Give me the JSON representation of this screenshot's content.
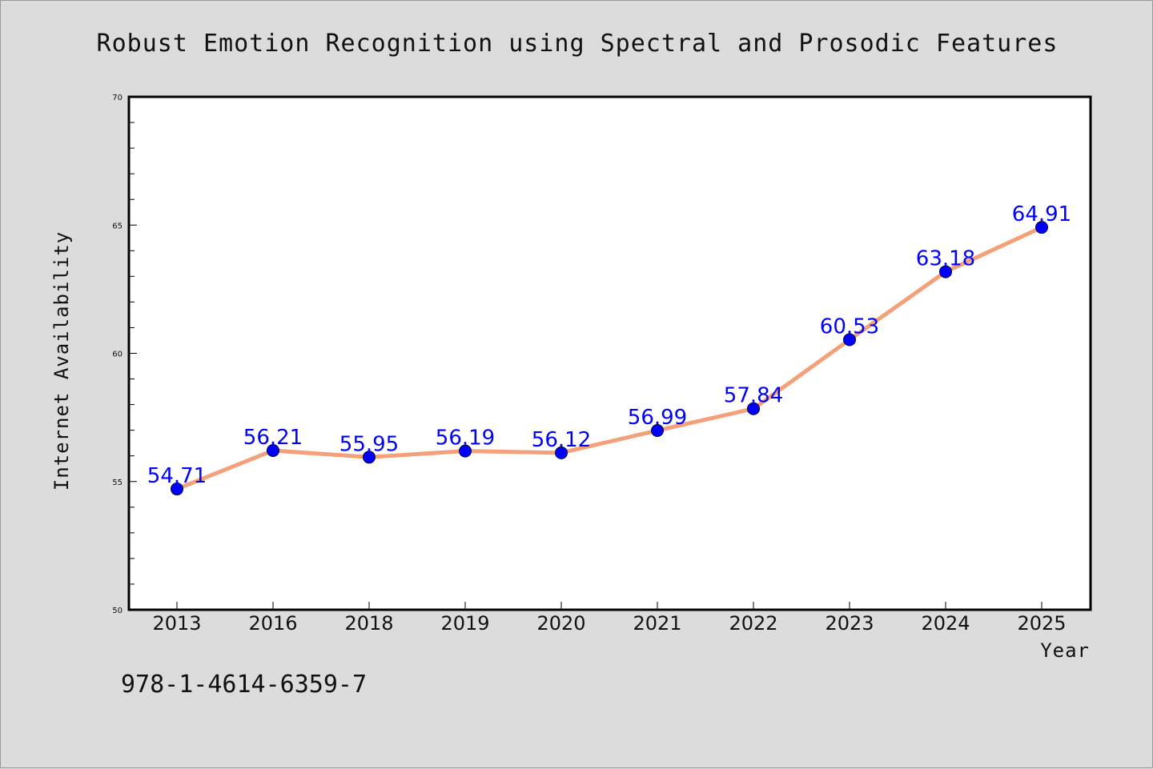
{
  "chart_data": {
    "type": "line",
    "title": "Robust Emotion Recognition using Spectral and Prosodic Features",
    "xlabel": "Year",
    "ylabel": "Internet Availability",
    "categories": [
      "2013",
      "2016",
      "2018",
      "2019",
      "2020",
      "2021",
      "2022",
      "2023",
      "2024",
      "2025"
    ],
    "series": [
      {
        "values": [
          54.71,
          56.21,
          55.95,
          56.19,
          56.12,
          56.99,
          57.84,
          60.53,
          63.18,
          64.91
        ],
        "labels": [
          "54.71",
          "56.21",
          "55.95",
          "56.19",
          "56.12",
          "56.99",
          "57.84",
          "60.53",
          "63.18",
          "64.91"
        ],
        "line_color": "#f4a07a",
        "marker_color": "#0000ff"
      }
    ],
    "ylim": [
      50,
      70
    ],
    "y_ticks": [
      "50",
      "55",
      "60",
      "65",
      "70"
    ],
    "y_minor_step": 1,
    "grid": false,
    "legend": "none"
  },
  "footer": {
    "note": "978-1-4614-6359-7"
  },
  "colors": {
    "background": "#dcdcdc",
    "plot_background": "#ffffff",
    "axis": "#000000",
    "label_text": "#0000ff"
  }
}
